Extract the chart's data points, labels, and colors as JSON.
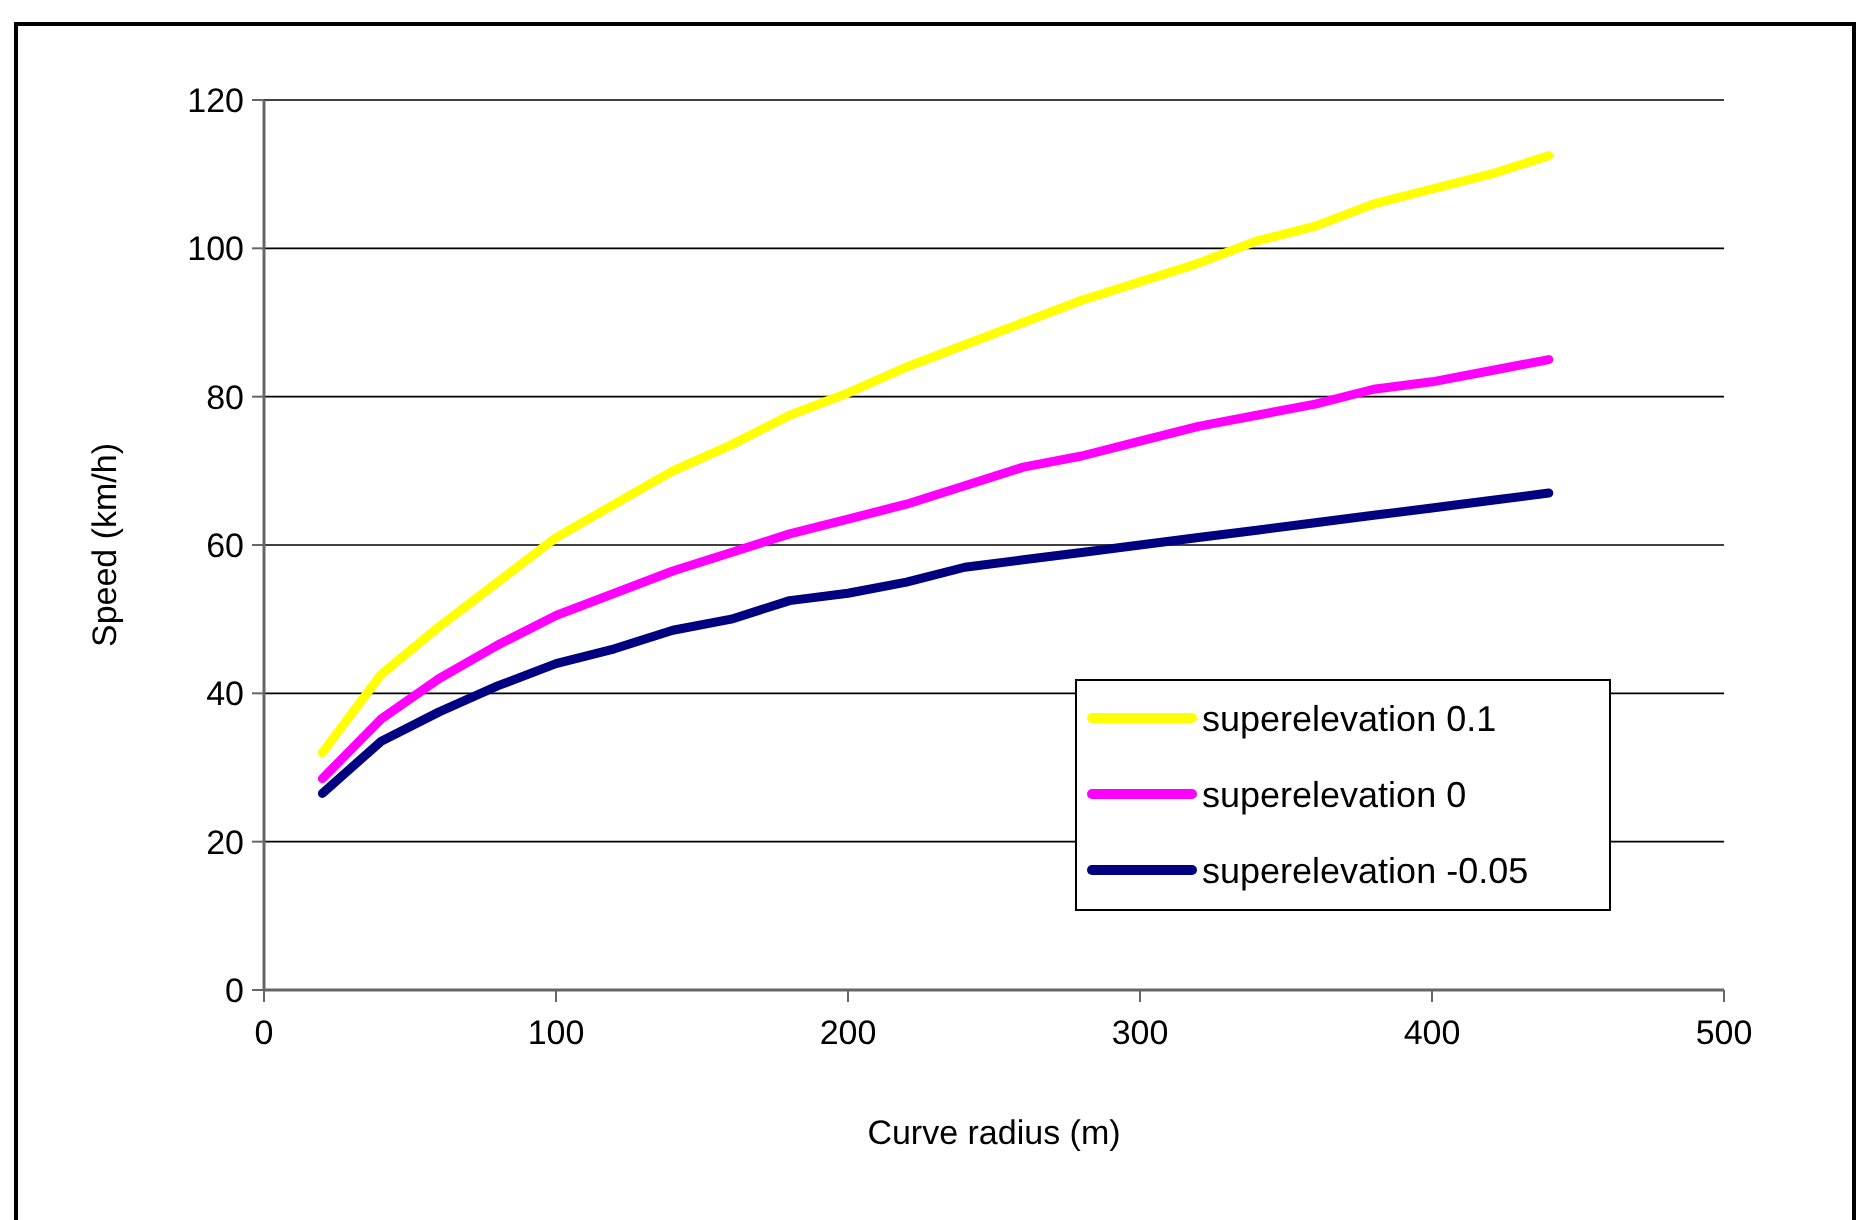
{
  "chart_data": {
    "type": "line",
    "xlabel": "Curve radius (m)",
    "ylabel": "Speed (km/h)",
    "x": [
      20,
      40,
      60,
      80,
      100,
      120,
      140,
      160,
      180,
      200,
      220,
      240,
      260,
      280,
      300,
      320,
      340,
      360,
      380,
      400,
      420,
      440
    ],
    "series": [
      {
        "name": "superelevation 0.1",
        "color": "#ffff00",
        "values": [
          32,
          42.5,
          49,
          55,
          61,
          65.5,
          70,
          73.5,
          77.5,
          80.5,
          84,
          87,
          90,
          93,
          95.5,
          98,
          101,
          103,
          106,
          108,
          110,
          112.5
        ]
      },
      {
        "name": "superelevation 0",
        "color": "#ff00ff",
        "values": [
          28.5,
          36.5,
          42,
          46.5,
          50.5,
          53.5,
          56.5,
          59,
          61.5,
          63.5,
          65.5,
          68,
          70.5,
          72,
          74,
          76,
          77.5,
          79,
          81,
          82,
          83.5,
          85
        ]
      },
      {
        "name": "superelevation -0.05",
        "color": "#000080",
        "values": [
          26.5,
          33.5,
          37.5,
          41,
          44,
          46,
          48.5,
          50,
          52.5,
          53.5,
          55,
          57,
          58,
          59,
          60,
          61,
          62,
          63,
          64,
          65,
          66,
          67
        ]
      }
    ],
    "xlim": [
      0,
      500
    ],
    "xticks": [
      0,
      100,
      200,
      300,
      400,
      500
    ],
    "ylim": [
      0,
      120
    ],
    "yticks": [
      0,
      20,
      40,
      60,
      80,
      100,
      120
    ],
    "grid": "y",
    "legend": "bottom right",
    "marker": "none",
    "line_style": "solid"
  }
}
